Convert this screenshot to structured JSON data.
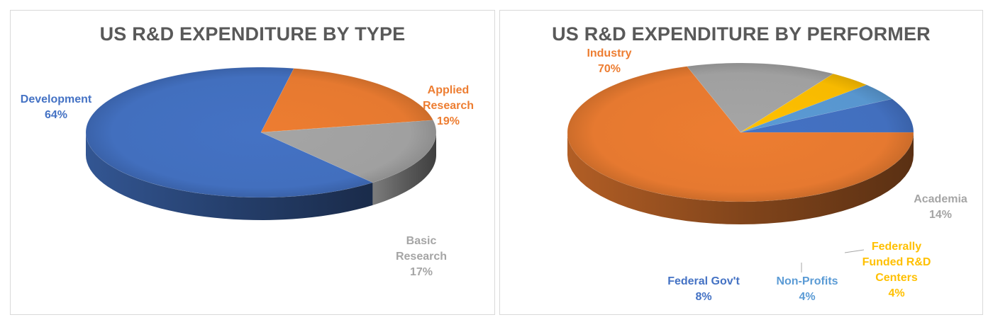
{
  "chart_data": [
    {
      "type": "pie",
      "title": "US R&D EXPENDITURE BY TYPE",
      "categories": [
        "Development",
        "Applied Research",
        "Basic Research"
      ],
      "values": [
        64,
        19,
        17
      ],
      "labels": [
        {
          "lines": [
            "Development",
            "64%"
          ]
        },
        {
          "lines": [
            "Applied",
            "Research",
            "19%"
          ]
        },
        {
          "lines": [
            "Basic",
            "Research",
            "17%"
          ]
        }
      ],
      "colors": [
        "#4472c4",
        "#ed7d31",
        "#a5a5a5"
      ],
      "style": "3d"
    },
    {
      "type": "pie",
      "title": "US R&D EXPENDITURE BY PERFORMER",
      "categories": [
        "Industry",
        "Academia",
        "Federally Funded R&D Centers",
        "Non-Profits",
        "Federal Gov't"
      ],
      "values": [
        70,
        14,
        4,
        4,
        8
      ],
      "labels": [
        {
          "lines": [
            "Industry",
            "70%"
          ]
        },
        {
          "lines": [
            "Academia",
            "14%"
          ]
        },
        {
          "lines": [
            "Federally",
            "Funded R&D",
            "Centers",
            "4%"
          ]
        },
        {
          "lines": [
            "Non-Profits",
            "4%"
          ]
        },
        {
          "lines": [
            "Federal Gov't",
            "8%"
          ]
        }
      ],
      "colors": [
        "#ed7d31",
        "#a5a5a5",
        "#ffc000",
        "#5b9bd5",
        "#4472c4"
      ],
      "style": "3d"
    }
  ]
}
